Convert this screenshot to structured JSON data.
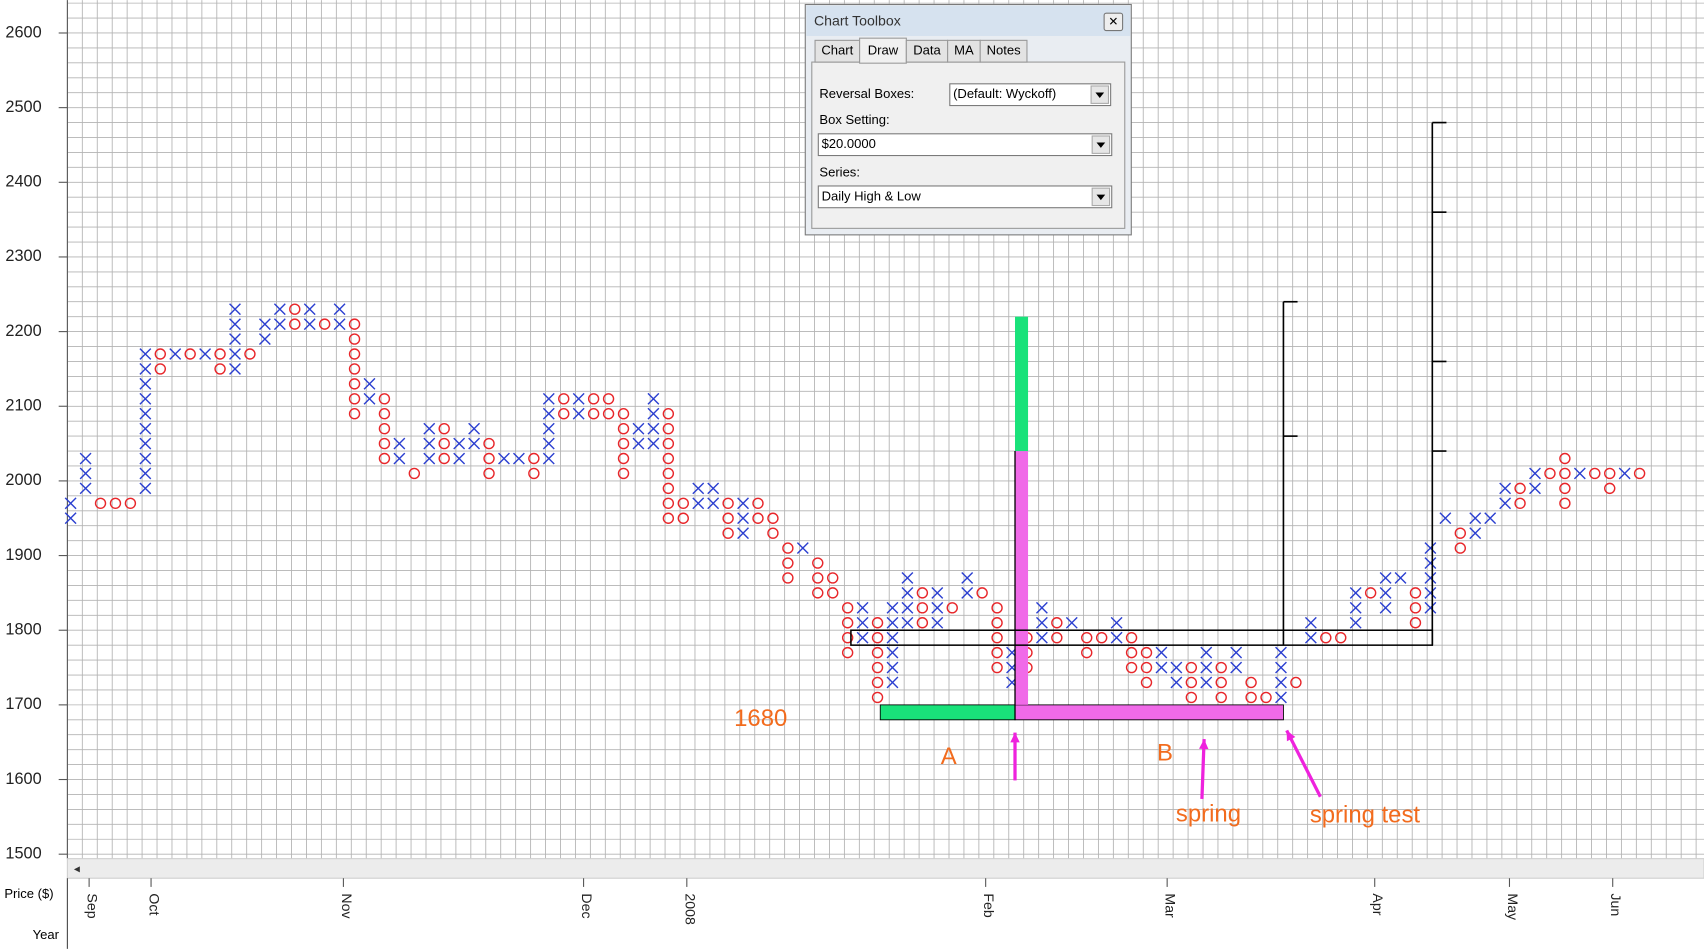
{
  "toolbox": {
    "title": "Chart Toolbox",
    "tabs": [
      "Chart",
      "Draw",
      "Data",
      "MA",
      "Notes"
    ],
    "fields": [
      {
        "label": "Reversal Boxes:",
        "value": "(Default: Wyckoff)"
      },
      {
        "label": "Box Setting:",
        "value": "$20.0000"
      },
      {
        "label": "Series:",
        "value": "Daily High & Low"
      }
    ]
  },
  "chart_data": {
    "type": "point_and_figure",
    "box_size": 20,
    "ylim": [
      1494,
      2644
    ],
    "yticks": [
      1500,
      1600,
      1700,
      1800,
      1900,
      2000,
      2100,
      2200,
      2300,
      2400,
      2500,
      2600
    ],
    "y_label": "Price ($)",
    "x_label": "Year",
    "months": [
      "Sep",
      "Oct",
      "Nov",
      "Dec",
      "2008",
      "Feb",
      "Mar",
      "Apr",
      "May",
      "Jun"
    ],
    "x_color": "#2b3fd0",
    "o_color": "#e8262a",
    "grid": true,
    "columns": [
      {
        "type": "X",
        "low": 1940,
        "high": 1960
      },
      {
        "type": "X",
        "low": 1980,
        "high": 2020
      },
      {
        "type": "O",
        "low": 1960,
        "high": 1960
      },
      {
        "type": "O",
        "low": 1960,
        "high": 1960
      },
      {
        "type": "O",
        "low": 1960,
        "high": 1960
      },
      {
        "type": "X",
        "low": 1980,
        "high": 2160
      },
      {
        "type": "O",
        "low": 2140,
        "high": 2160
      },
      {
        "type": "X",
        "low": 2160,
        "high": 2160
      },
      {
        "type": "O",
        "low": 2160,
        "high": 2160
      },
      {
        "type": "X",
        "low": 2160,
        "high": 2160
      },
      {
        "type": "O",
        "low": 2140,
        "high": 2160
      },
      {
        "type": "X",
        "low": 2140,
        "high": 2220
      },
      {
        "type": "O",
        "low": 2160,
        "high": 2160
      },
      {
        "type": "X",
        "low": 2180,
        "high": 2200
      },
      {
        "type": "X",
        "low": 2200,
        "high": 2220
      },
      {
        "type": "O",
        "low": 2200,
        "high": 2220
      },
      {
        "type": "X",
        "low": 2200,
        "high": 2220
      },
      {
        "type": "O",
        "low": 2200,
        "high": 2200
      },
      {
        "type": "X",
        "low": 2200,
        "high": 2220
      },
      {
        "type": "O",
        "low": 2080,
        "high": 2200
      },
      {
        "type": "X",
        "low": 2100,
        "high": 2120
      },
      {
        "type": "O",
        "low": 2020,
        "high": 2100
      },
      {
        "type": "X",
        "low": 2020,
        "high": 2040
      },
      {
        "type": "O",
        "low": 2000,
        "high": 2000
      },
      {
        "type": "X",
        "low": 2020,
        "high": 2060
      },
      {
        "type": "O",
        "low": 2020,
        "high": 2060
      },
      {
        "type": "X",
        "low": 2020,
        "high": 2040
      },
      {
        "type": "X",
        "low": 2040,
        "high": 2060
      },
      {
        "type": "O",
        "low": 2000,
        "high": 2040
      },
      {
        "type": "X",
        "low": 2020,
        "high": 2020
      },
      {
        "type": "X",
        "low": 2020,
        "high": 2020
      },
      {
        "type": "O",
        "low": 2000,
        "high": 2020
      },
      {
        "type": "X",
        "low": 2020,
        "high": 2100
      },
      {
        "type": "O",
        "low": 2080,
        "high": 2100
      },
      {
        "type": "X",
        "low": 2080,
        "high": 2100
      },
      {
        "type": "O",
        "low": 2080,
        "high": 2100
      },
      {
        "type": "O",
        "low": 2080,
        "high": 2100
      },
      {
        "type": "O",
        "low": 2000,
        "high": 2080
      },
      {
        "type": "X",
        "low": 2040,
        "high": 2060
      },
      {
        "type": "X",
        "low": 2040,
        "high": 2100
      },
      {
        "type": "O",
        "low": 1940,
        "high": 2080
      },
      {
        "type": "O",
        "low": 1940,
        "high": 1960
      },
      {
        "type": "X",
        "low": 1960,
        "high": 1980
      },
      {
        "type": "X",
        "low": 1960,
        "high": 1980
      },
      {
        "type": "O",
        "low": 1920,
        "high": 1960
      },
      {
        "type": "X",
        "low": 1920,
        "high": 1960
      },
      {
        "type": "O",
        "low": 1940,
        "high": 1960
      },
      {
        "type": "O",
        "low": 1920,
        "high": 1940
      },
      {
        "type": "O",
        "low": 1860,
        "high": 1900
      },
      {
        "type": "X",
        "low": 1900,
        "high": 1900
      },
      {
        "type": "O",
        "low": 1840,
        "high": 1880
      },
      {
        "type": "O",
        "low": 1840,
        "high": 1860
      },
      {
        "type": "O",
        "low": 1760,
        "high": 1820
      },
      {
        "type": "X",
        "low": 1780,
        "high": 1820
      },
      {
        "type": "O",
        "low": 1700,
        "high": 1800
      },
      {
        "type": "X",
        "low": 1720,
        "high": 1820
      },
      {
        "type": "X",
        "low": 1800,
        "high": 1860
      },
      {
        "type": "O",
        "low": 1800,
        "high": 1840
      },
      {
        "type": "X",
        "low": 1800,
        "high": 1840
      },
      {
        "type": "O",
        "low": 1820,
        "high": 1820
      },
      {
        "type": "X",
        "low": 1840,
        "high": 1860
      },
      {
        "type": "O",
        "low": 1840,
        "high": 1840
      },
      {
        "type": "O",
        "low": 1740,
        "high": 1820
      },
      {
        "type": "X",
        "low": 1720,
        "high": 1760
      },
      {
        "type": "O",
        "low": 1740,
        "high": 1780
      },
      {
        "type": "X",
        "low": 1780,
        "high": 1820
      },
      {
        "type": "O",
        "low": 1780,
        "high": 1800
      },
      {
        "type": "X",
        "low": 1800,
        "high": 1800
      },
      {
        "type": "O",
        "low": 1760,
        "high": 1780
      },
      {
        "type": "O",
        "low": 1780,
        "high": 1780
      },
      {
        "type": "X",
        "low": 1780,
        "high": 1800
      },
      {
        "type": "O",
        "low": 1740,
        "high": 1780
      },
      {
        "type": "O",
        "low": 1720,
        "high": 1760
      },
      {
        "type": "X",
        "low": 1740,
        "high": 1760
      },
      {
        "type": "X",
        "low": 1720,
        "high": 1740
      },
      {
        "type": "O",
        "low": 1700,
        "high": 1740
      },
      {
        "type": "X",
        "low": 1720,
        "high": 1760
      },
      {
        "type": "O",
        "low": 1700,
        "high": 1740
      },
      {
        "type": "X",
        "low": 1740,
        "high": 1760
      },
      {
        "type": "O",
        "low": 1700,
        "high": 1720
      },
      {
        "type": "O",
        "low": 1680,
        "high": 1700
      },
      {
        "type": "X",
        "low": 1700,
        "high": 1760
      },
      {
        "type": "O",
        "low": 1720,
        "high": 1720
      },
      {
        "type": "X",
        "low": 1780,
        "high": 1800
      },
      {
        "type": "O",
        "low": 1780,
        "high": 1780
      },
      {
        "type": "O",
        "low": 1780,
        "high": 1780
      },
      {
        "type": "X",
        "low": 1800,
        "high": 1840
      },
      {
        "type": "O",
        "low": 1840,
        "high": 1840
      },
      {
        "type": "X",
        "low": 1820,
        "high": 1860
      },
      {
        "type": "X",
        "low": 1860,
        "high": 1860
      },
      {
        "type": "O",
        "low": 1800,
        "high": 1840
      },
      {
        "type": "X",
        "low": 1820,
        "high": 1900
      },
      {
        "type": "X",
        "low": 1940,
        "high": 1940
      },
      {
        "type": "O",
        "low": 1900,
        "high": 1920
      },
      {
        "type": "X",
        "low": 1920,
        "high": 1940
      },
      {
        "type": "X",
        "low": 1940,
        "high": 1940
      },
      {
        "type": "X",
        "low": 1960,
        "high": 1980
      },
      {
        "type": "O",
        "low": 1960,
        "high": 1980
      },
      {
        "type": "X",
        "low": 1980,
        "high": 2000
      },
      {
        "type": "O",
        "low": 2000,
        "high": 2000
      },
      {
        "type": "O",
        "low": 1960,
        "high": 2020
      },
      {
        "type": "X",
        "low": 2000,
        "high": 2000
      },
      {
        "type": "O",
        "low": 2000,
        "high": 2000
      },
      {
        "type": "O",
        "low": 1980,
        "high": 2000
      },
      {
        "type": "X",
        "low": 2000,
        "high": 2000
      },
      {
        "type": "O",
        "low": 2000,
        "high": 2000
      }
    ],
    "annotations": {
      "count_level": 1680,
      "segment_labels": [
        "A",
        "B"
      ],
      "arrow_labels": [
        "spring",
        "spring test"
      ],
      "projection_a": 2220,
      "projection_b": 2040,
      "trading_range": [
        1780,
        1800
      ],
      "targets_1": [
        2060,
        2240
      ],
      "targets_2": [
        2040,
        2160,
        2360,
        2480
      ]
    }
  }
}
